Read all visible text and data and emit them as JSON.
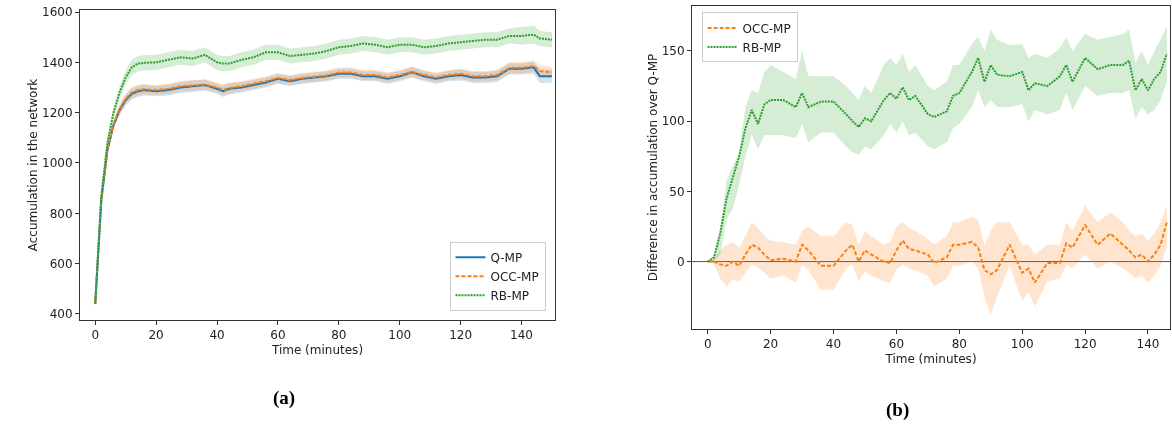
{
  "chart_data": [
    {
      "type": "line",
      "xlabel": "Time (minutes)",
      "ylabel": "Accumulation in the network",
      "annotations": [
        "(a)"
      ],
      "xlim": [
        -5,
        151
      ],
      "ylim": [
        376,
        1608
      ],
      "xticks": [
        0,
        20,
        40,
        60,
        80,
        100,
        120,
        140
      ],
      "yticks": [
        400,
        600,
        800,
        1000,
        1200,
        1400,
        1600
      ],
      "grid": false,
      "legend": "bottom right",
      "marker": "none",
      "x": [
        0,
        2,
        4,
        6,
        8,
        10,
        12,
        14,
        16,
        20,
        24,
        28,
        32,
        36,
        40,
        42,
        44,
        48,
        52,
        56,
        60,
        64,
        68,
        72,
        76,
        80,
        84,
        88,
        92,
        96,
        100,
        104,
        108,
        112,
        116,
        120,
        124,
        128,
        132,
        136,
        140,
        144,
        146,
        150
      ],
      "series": [
        {
          "name": "Q-MP",
          "color": "#1f77b4",
          "line_style": "solid",
          "values": [
            440,
            850,
            1050,
            1150,
            1210,
            1250,
            1275,
            1285,
            1290,
            1285,
            1290,
            1300,
            1305,
            1310,
            1295,
            1285,
            1295,
            1300,
            1310,
            1320,
            1335,
            1325,
            1335,
            1340,
            1345,
            1355,
            1355,
            1345,
            1345,
            1335,
            1345,
            1360,
            1345,
            1335,
            1345,
            1350,
            1340,
            1340,
            1345,
            1375,
            1375,
            1380,
            1345,
            1345
          ],
          "lower": [
            430,
            835,
            1035,
            1135,
            1190,
            1228,
            1252,
            1262,
            1268,
            1265,
            1268,
            1278,
            1282,
            1288,
            1275,
            1262,
            1272,
            1280,
            1290,
            1300,
            1315,
            1305,
            1315,
            1320,
            1325,
            1335,
            1335,
            1325,
            1325,
            1315,
            1325,
            1340,
            1325,
            1315,
            1325,
            1328,
            1318,
            1318,
            1322,
            1352,
            1352,
            1355,
            1318,
            1318
          ],
          "upper": [
            450,
            865,
            1065,
            1165,
            1228,
            1270,
            1296,
            1306,
            1312,
            1305,
            1312,
            1322,
            1328,
            1332,
            1315,
            1308,
            1318,
            1322,
            1330,
            1340,
            1355,
            1345,
            1355,
            1360,
            1365,
            1375,
            1375,
            1365,
            1365,
            1357,
            1366,
            1382,
            1366,
            1356,
            1366,
            1372,
            1362,
            1362,
            1368,
            1396,
            1396,
            1402,
            1372,
            1372
          ]
        },
        {
          "name": "OCC-MP",
          "color": "#ff7f0e",
          "line_style": "dashed",
          "values": [
            440,
            855,
            1055,
            1155,
            1215,
            1255,
            1280,
            1290,
            1293,
            1290,
            1295,
            1305,
            1308,
            1312,
            1300,
            1290,
            1298,
            1305,
            1315,
            1325,
            1338,
            1330,
            1338,
            1343,
            1348,
            1360,
            1360,
            1350,
            1350,
            1340,
            1350,
            1362,
            1350,
            1340,
            1350,
            1355,
            1345,
            1345,
            1350,
            1378,
            1378,
            1385,
            1365,
            1360
          ],
          "lower": [
            430,
            840,
            1040,
            1140,
            1195,
            1233,
            1258,
            1268,
            1272,
            1270,
            1274,
            1284,
            1287,
            1291,
            1279,
            1268,
            1277,
            1285,
            1295,
            1305,
            1318,
            1310,
            1318,
            1323,
            1328,
            1340,
            1340,
            1330,
            1330,
            1320,
            1330,
            1342,
            1330,
            1320,
            1330,
            1334,
            1324,
            1324,
            1329,
            1356,
            1356,
            1362,
            1342,
            1338
          ],
          "upper": [
            450,
            870,
            1070,
            1170,
            1235,
            1277,
            1302,
            1312,
            1314,
            1310,
            1316,
            1326,
            1329,
            1333,
            1321,
            1312,
            1319,
            1325,
            1335,
            1345,
            1358,
            1350,
            1358,
            1363,
            1368,
            1380,
            1380,
            1370,
            1370,
            1360,
            1370,
            1382,
            1370,
            1360,
            1370,
            1376,
            1366,
            1366,
            1371,
            1400,
            1400,
            1408,
            1388,
            1382
          ]
        },
        {
          "name": "RB-MP",
          "color": "#2ca02c",
          "line_style": "dotted",
          "values": [
            440,
            870,
            1080,
            1200,
            1280,
            1340,
            1380,
            1395,
            1398,
            1400,
            1410,
            1420,
            1415,
            1430,
            1400,
            1395,
            1395,
            1410,
            1420,
            1440,
            1440,
            1425,
            1430,
            1435,
            1445,
            1460,
            1465,
            1475,
            1470,
            1460,
            1470,
            1470,
            1460,
            1465,
            1475,
            1480,
            1485,
            1490,
            1490,
            1505,
            1505,
            1510,
            1495,
            1490
          ],
          "lower": [
            430,
            850,
            1060,
            1180,
            1255,
            1312,
            1350,
            1365,
            1368,
            1370,
            1380,
            1390,
            1385,
            1400,
            1370,
            1365,
            1365,
            1380,
            1390,
            1410,
            1410,
            1395,
            1400,
            1405,
            1415,
            1430,
            1435,
            1445,
            1440,
            1430,
            1440,
            1440,
            1430,
            1435,
            1445,
            1450,
            1455,
            1460,
            1460,
            1475,
            1470,
            1475,
            1465,
            1460
          ],
          "upper": [
            450,
            890,
            1100,
            1220,
            1305,
            1368,
            1410,
            1425,
            1428,
            1430,
            1440,
            1450,
            1445,
            1460,
            1430,
            1425,
            1425,
            1440,
            1450,
            1470,
            1470,
            1455,
            1460,
            1465,
            1475,
            1490,
            1495,
            1505,
            1500,
            1490,
            1500,
            1500,
            1490,
            1495,
            1505,
            1510,
            1515,
            1520,
            1520,
            1535,
            1540,
            1545,
            1525,
            1520
          ]
        }
      ]
    },
    {
      "type": "line",
      "xlabel": "Time (minutes)",
      "ylabel": "Difference in accumulation over Q-MP",
      "annotations": [
        "(b)"
      ],
      "xlim": [
        -5,
        147
      ],
      "ylim": [
        -48,
        182
      ],
      "xticks": [
        0,
        20,
        40,
        60,
        80,
        100,
        120,
        140
      ],
      "yticks": [
        0,
        50,
        100,
        150
      ],
      "grid": false,
      "legend": "top left",
      "marker": "none",
      "ref_lines": [
        {
          "axis": "y",
          "value": 0,
          "color": "#555555"
        }
      ],
      "x": [
        0,
        2,
        4,
        6,
        8,
        10,
        12,
        14,
        16,
        18,
        20,
        24,
        28,
        30,
        32,
        36,
        40,
        44,
        46,
        48,
        50,
        52,
        56,
        58,
        60,
        62,
        64,
        66,
        70,
        72,
        76,
        78,
        80,
        84,
        86,
        88,
        90,
        92,
        96,
        100,
        102,
        104,
        108,
        112,
        114,
        116,
        120,
        124,
        128,
        132,
        134,
        136,
        138,
        140,
        142,
        144,
        146
      ],
      "series": [
        {
          "name": "OCC-MP",
          "color": "#ff7f0e",
          "line_style": "dashed",
          "values": [
            0,
            0,
            -2,
            -3,
            0,
            -3,
            5,
            12,
            10,
            5,
            1,
            2,
            0,
            12,
            8,
            -3,
            -3,
            8,
            12,
            0,
            8,
            5,
            0,
            -1,
            8,
            15,
            9,
            8,
            5,
            -1,
            3,
            12,
            12,
            14,
            10,
            -6,
            -9,
            -6,
            12,
            -8,
            -5,
            -15,
            -1,
            -1,
            13,
            10,
            26,
            12,
            20,
            12,
            8,
            3,
            5,
            0,
            5,
            12,
            28
          ],
          "lower": [
            0,
            -2,
            -12,
            -18,
            -13,
            -14,
            -8,
            -2,
            -4,
            -8,
            -12,
            -10,
            -15,
            -2,
            -6,
            -20,
            -20,
            -5,
            -2,
            -14,
            -7,
            -10,
            -14,
            -15,
            -6,
            -2,
            -5,
            -6,
            -10,
            -18,
            -12,
            -3,
            -3,
            0,
            -5,
            -25,
            -38,
            -25,
            -3,
            -28,
            -22,
            -32,
            -14,
            -12,
            -2,
            -5,
            5,
            -5,
            0,
            -5,
            -8,
            -12,
            -10,
            -15,
            -10,
            -3,
            10
          ],
          "upper": [
            0,
            2,
            8,
            12,
            14,
            10,
            18,
            28,
            24,
            18,
            15,
            14,
            12,
            22,
            25,
            18,
            18,
            28,
            26,
            12,
            22,
            18,
            12,
            14,
            25,
            28,
            24,
            22,
            16,
            12,
            18,
            28,
            28,
            32,
            30,
            12,
            22,
            28,
            28,
            12,
            12,
            5,
            12,
            12,
            28,
            22,
            40,
            28,
            35,
            28,
            22,
            18,
            20,
            15,
            20,
            28,
            40
          ]
        },
        {
          "name": "RB-MP",
          "color": "#2ca02c",
          "line_style": "dotted",
          "values": [
            0,
            3,
            20,
            45,
            60,
            75,
            95,
            108,
            98,
            112,
            115,
            115,
            110,
            120,
            110,
            114,
            114,
            105,
            100,
            96,
            102,
            100,
            115,
            120,
            116,
            124,
            115,
            118,
            105,
            103,
            107,
            118,
            120,
            135,
            145,
            128,
            140,
            133,
            132,
            135,
            122,
            127,
            125,
            132,
            140,
            128,
            145,
            137,
            140,
            140,
            143,
            122,
            130,
            122,
            130,
            135,
            148
          ],
          "lower": [
            0,
            0,
            5,
            30,
            38,
            55,
            75,
            90,
            80,
            90,
            90,
            90,
            88,
            98,
            85,
            92,
            92,
            82,
            78,
            76,
            82,
            80,
            90,
            98,
            92,
            100,
            90,
            92,
            82,
            80,
            85,
            95,
            98,
            110,
            122,
            110,
            115,
            110,
            110,
            112,
            100,
            108,
            105,
            108,
            120,
            108,
            125,
            118,
            120,
            120,
            122,
            102,
            110,
            105,
            108,
            115,
            128
          ],
          "upper": [
            0,
            5,
            25,
            58,
            68,
            78,
            110,
            122,
            120,
            135,
            140,
            135,
            130,
            150,
            132,
            132,
            132,
            125,
            120,
            115,
            125,
            120,
            140,
            145,
            140,
            148,
            135,
            140,
            125,
            122,
            128,
            140,
            140,
            155,
            160,
            150,
            165,
            158,
            154,
            155,
            145,
            148,
            145,
            152,
            160,
            150,
            162,
            158,
            160,
            162,
            165,
            142,
            150,
            140,
            150,
            158,
            168
          ]
        }
      ]
    }
  ]
}
